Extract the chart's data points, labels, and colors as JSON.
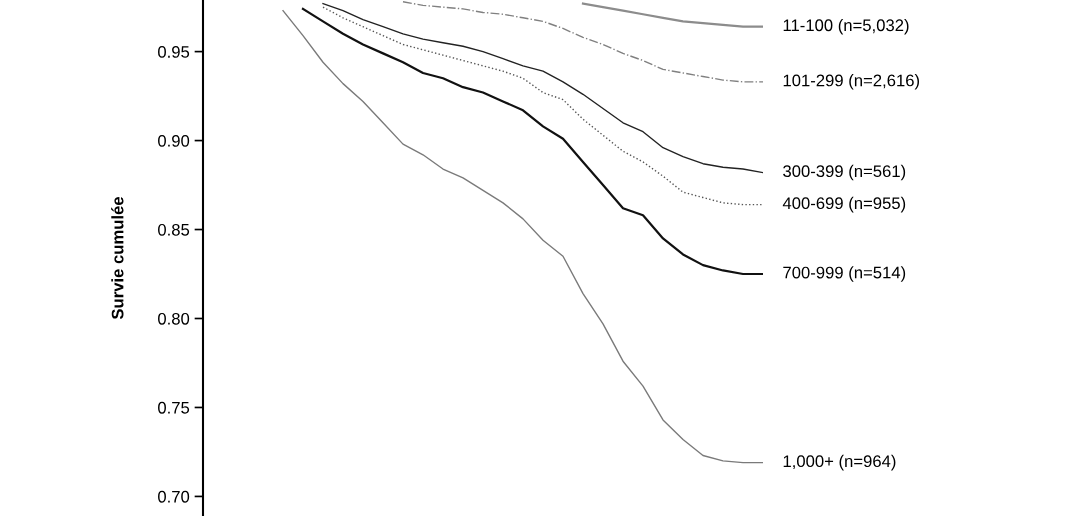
{
  "chart_data": {
    "type": "line",
    "ylabel": "Survie cumulée",
    "categories": [
      null,
      null,
      null,
      null,
      null,
      null,
      null,
      null,
      null,
      null,
      null,
      null,
      null,
      null,
      null,
      null,
      null,
      null,
      null,
      null,
      null,
      null,
      null,
      null,
      null,
      null,
      null
    ],
    "ylim": [
      0.689,
      0.979
    ],
    "yticks": [
      {
        "value": 0.7,
        "label": "0.70"
      },
      {
        "value": 0.75,
        "label": "0.75"
      },
      {
        "value": 0.8,
        "label": "0.80"
      },
      {
        "value": 0.85,
        "label": "0.85"
      },
      {
        "value": 0.9,
        "label": "0.90"
      },
      {
        "value": 0.95,
        "label": "0.95"
      }
    ],
    "tick_labels": "y",
    "grid": false,
    "legend": false,
    "marker": "none",
    "series": [
      {
        "name": "11-100 (n=5,032)",
        "color": "#8c8c8c",
        "line_style": "solid",
        "values": [
          null,
          null,
          null,
          null,
          null,
          null,
          null,
          null,
          null,
          null,
          null,
          null,
          null,
          null,
          null,
          null,
          null,
          0.977,
          0.975,
          0.973,
          0.971,
          0.969,
          0.967,
          0.966,
          0.965,
          0.964,
          0.964
        ]
      },
      {
        "name": "101-299 (n=2,616)",
        "color": "#808080",
        "line_style": "dashed",
        "values": [
          null,
          null,
          null,
          null,
          null,
          null,
          null,
          null,
          0.978,
          0.976,
          0.975,
          0.974,
          0.972,
          0.971,
          0.969,
          0.967,
          0.963,
          0.958,
          0.954,
          0.949,
          0.945,
          0.94,
          0.938,
          0.936,
          0.934,
          0.933,
          0.933
        ]
      },
      {
        "name": "300-399 (n=561)",
        "color": "#222222",
        "line_style": "solid",
        "values": [
          null,
          null,
          null,
          null,
          0.977,
          0.973,
          0.968,
          0.964,
          0.96,
          0.957,
          0.955,
          0.953,
          0.95,
          0.946,
          0.942,
          0.939,
          0.933,
          0.926,
          0.918,
          0.91,
          0.905,
          0.896,
          0.891,
          0.887,
          0.885,
          0.884,
          0.882
        ]
      },
      {
        "name": "400-699 (n=955)",
        "color": "#555555",
        "line_style": "dotted",
        "values": [
          null,
          null,
          null,
          null,
          0.975,
          0.969,
          0.964,
          0.959,
          0.954,
          0.951,
          0.948,
          0.945,
          0.942,
          0.939,
          0.935,
          0.927,
          0.923,
          0.912,
          0.903,
          0.894,
          0.888,
          0.88,
          0.871,
          0.868,
          0.865,
          0.864,
          0.864
        ]
      },
      {
        "name": "700-999 (n=514)",
        "color": "#111111",
        "line_style": "solid",
        "values": [
          null,
          null,
          null,
          0.974,
          0.967,
          0.96,
          0.954,
          0.949,
          0.944,
          0.938,
          0.935,
          0.93,
          0.927,
          0.922,
          0.917,
          0.908,
          0.901,
          0.888,
          0.875,
          0.862,
          0.858,
          0.845,
          0.836,
          0.83,
          0.827,
          0.825,
          0.825
        ]
      },
      {
        "name": "1,000+ (n=964)",
        "color": "#7a7a7a",
        "line_style": "solid",
        "values": [
          null,
          null,
          0.973,
          0.959,
          0.944,
          0.932,
          0.922,
          0.91,
          0.898,
          0.892,
          0.884,
          0.879,
          0.872,
          0.865,
          0.856,
          0.844,
          0.835,
          0.814,
          0.797,
          0.776,
          0.762,
          0.743,
          0.732,
          0.723,
          0.72,
          0.719,
          0.719
        ]
      }
    ]
  }
}
